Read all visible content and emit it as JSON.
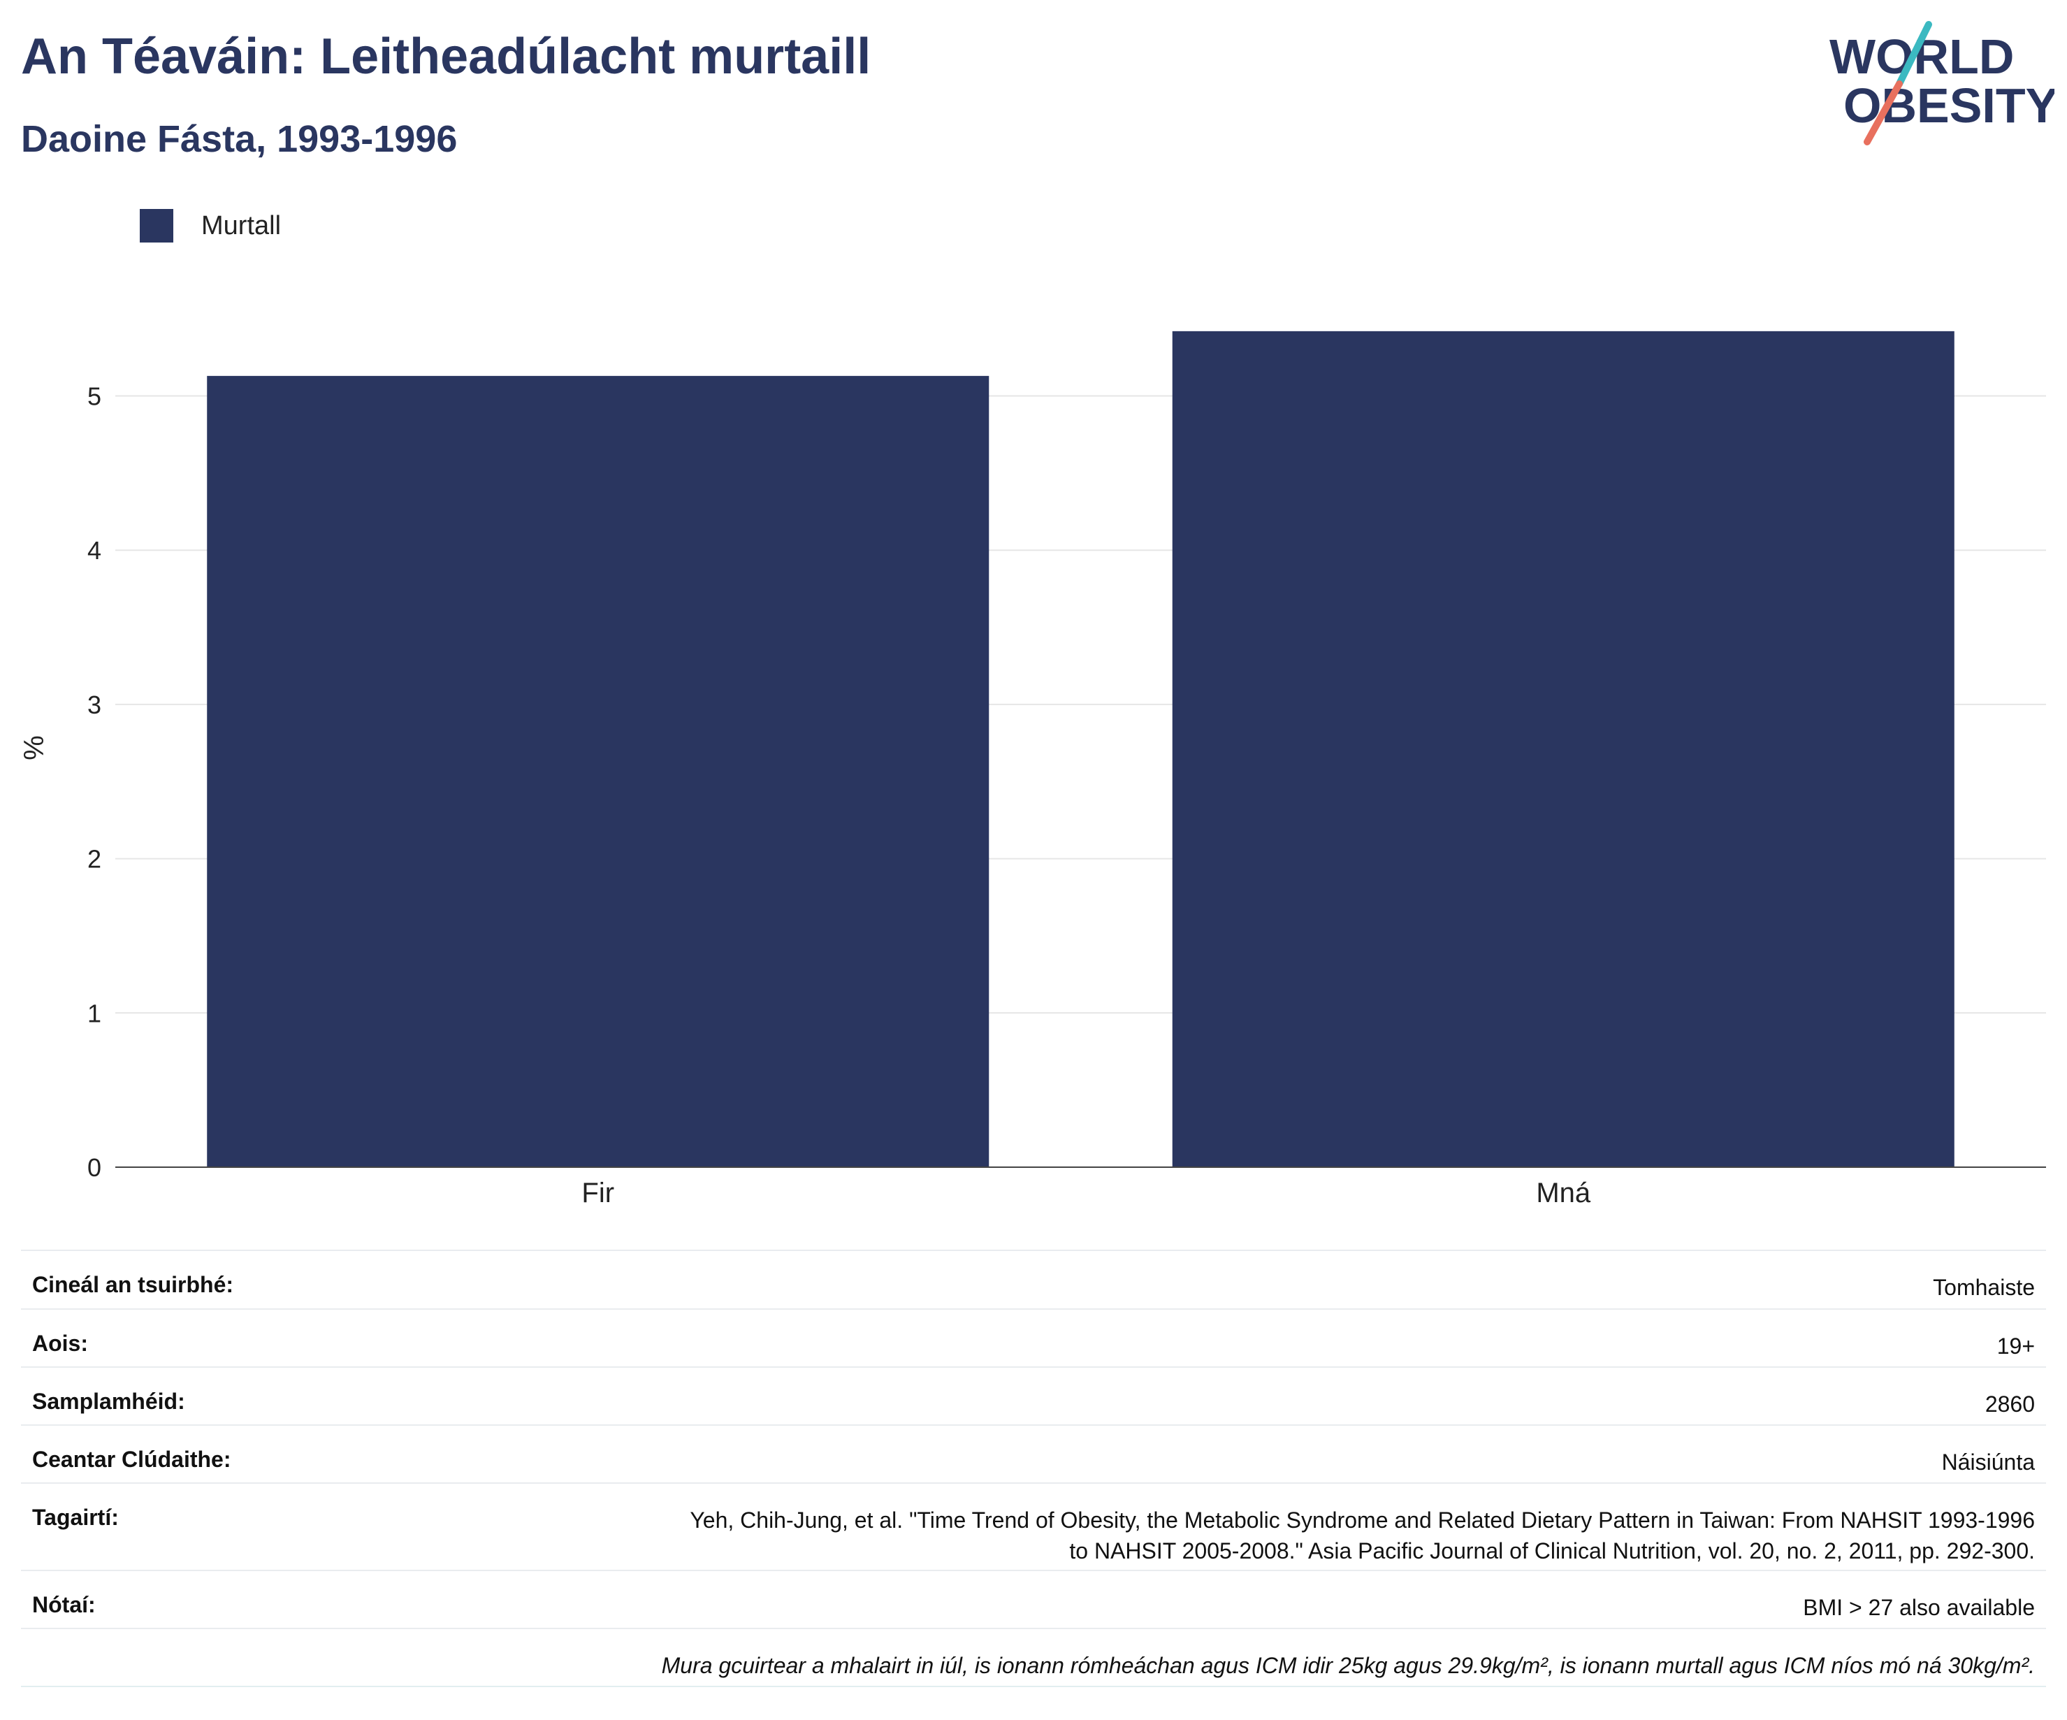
{
  "header": {
    "title": "An Téaváin: Leitheadúlacht murtaill",
    "subtitle": "Daoine Fásta, 1993-1996",
    "logo": {
      "line1": "WORLD",
      "line2": "OBESITY",
      "colors": {
        "text": "#2a3660",
        "slash_teal": "#3bb9c1",
        "slash_coral": "#e8705e"
      }
    }
  },
  "chart_data": {
    "type": "bar",
    "categories": [
      "Fir",
      "Mná"
    ],
    "series": [
      {
        "name": "Murtall",
        "values": [
          5.13,
          5.42
        ],
        "color": "#2a3660"
      }
    ],
    "ylabel": "%",
    "xlabel": "",
    "ylim": [
      0,
      5.8
    ],
    "yticks": [
      0,
      1,
      2,
      3,
      4,
      5
    ],
    "grid": true,
    "legend_position": "top-left"
  },
  "info": {
    "rows": [
      {
        "key": "Cineál an tsuirbhé:",
        "value": "Tomhaiste"
      },
      {
        "key": "Aois:",
        "value": "19+"
      },
      {
        "key": "Samplamhéid:",
        "value": "2860"
      },
      {
        "key": "Ceantar Clúdaithe:",
        "value": "Náisiúnta"
      },
      {
        "key": "Tagairtí:",
        "value_lines": [
          "Yeh, Chih-Jung, et al. \"Time Trend of Obesity, the Metabolic Syndrome and Related Dietary Pattern in Taiwan: From NAHSIT 1993-1996",
          "to NAHSIT 2005-2008.\" Asia Pacific Journal of Clinical Nutrition, vol. 20, no. 2, 2011, pp. 292-300."
        ]
      },
      {
        "key": "Nótaí:",
        "value": "BMI > 27 also available"
      }
    ],
    "footnote": "Mura gcuirtear a mhalairt in iúl, is ionann rómheáchan agus ICM idir 25kg agus 29.9kg/m², is ionann murtall agus ICM níos mó ná 30kg/m²."
  }
}
